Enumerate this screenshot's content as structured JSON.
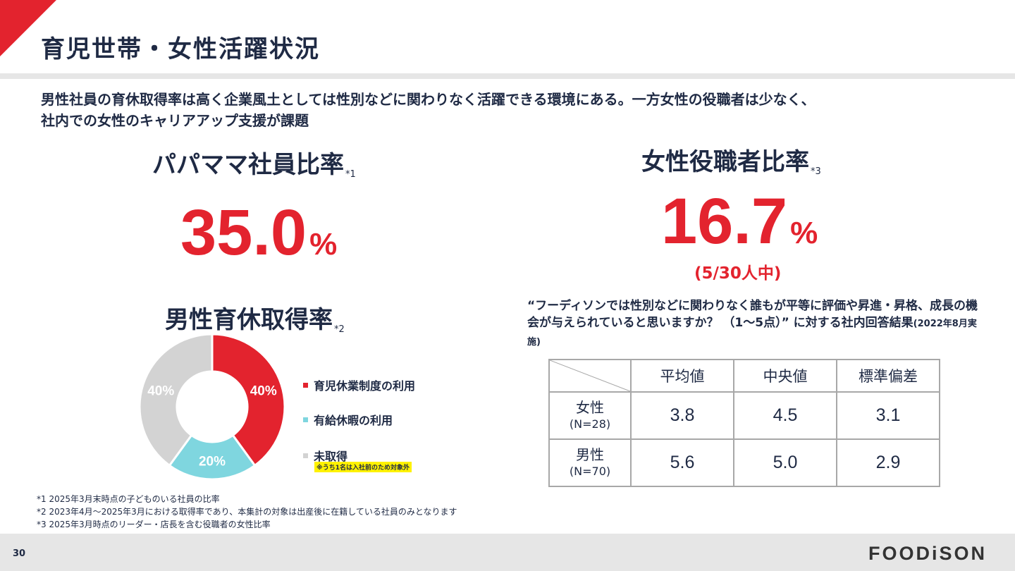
{
  "page": {
    "title": "育児世帯・女性活躍状況",
    "lead": [
      "男性社員の育休取得率は高く企業風土としては性別などに関わりなく活躍できる環境にある。一方女性の役職者は少なく、",
      "社内での女性のキャリアアップ支援が課題"
    ],
    "page_number": "30",
    "logo": "FOODiSON"
  },
  "papa_mama": {
    "heading": "パパママ社員比率",
    "note": "*1",
    "value": "35.0",
    "unit": "%"
  },
  "female_managers": {
    "heading": "女性役職者比率",
    "note": "*3",
    "value": "16.7",
    "unit": "%",
    "sub": "(5/30人中)"
  },
  "paternity": {
    "heading": "男性育休取得率",
    "note": "*2",
    "legend": [
      {
        "label": "育児休業制度の利用",
        "color": "#e3232e"
      },
      {
        "label": "有給休暇の利用",
        "color": "#7fd6df"
      },
      {
        "label": "未取得",
        "color": "#d3d3d3"
      }
    ],
    "highlight_note": "※うち1名は入社前のため対象外"
  },
  "chart_data": {
    "type": "pie",
    "donut": true,
    "categories": [
      "育児休業制度の利用",
      "有給休暇の利用",
      "未取得"
    ],
    "values": [
      40,
      20,
      40
    ],
    "labels": [
      "40%",
      "20%",
      "40%"
    ],
    "colors": [
      "#e3232e",
      "#7fd6df",
      "#d3d3d3"
    ],
    "legend_position": "right"
  },
  "survey": {
    "question": "“フーディソンでは性別などに関わりなく誰もが平等に評価や昇進・昇格、成長の機会が与えられていると思いますか？ （1〜5点）” に対する社内回答結果",
    "date_note": "(2022年8月実施)",
    "columns": [
      "平均値",
      "中央値",
      "標準偏差"
    ],
    "rows": [
      {
        "label": "女性",
        "n": "(N=28)",
        "values": [
          "3.8",
          "4.5",
          "3.1"
        ]
      },
      {
        "label": "男性",
        "n": "(N=70)",
        "values": [
          "5.6",
          "5.0",
          "2.9"
        ]
      }
    ]
  },
  "footnotes": [
    "*1 2025年3月末時点の子どものいる社員の比率",
    "*2 2023年4月〜2025年3月における取得率であり、本集計の対象は出産後に在籍している社員のみとなります",
    "*3 2025年3月時点のリーダー・店長を含む役職者の女性比率"
  ]
}
